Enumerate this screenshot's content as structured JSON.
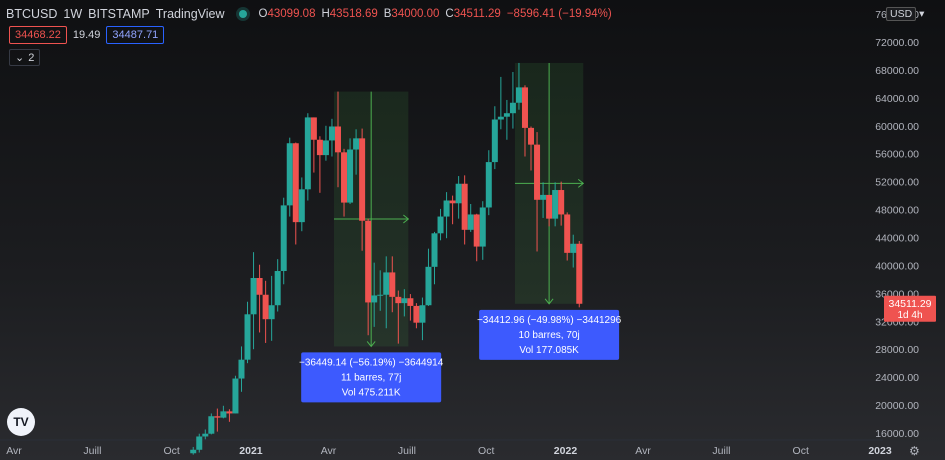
{
  "header": {
    "symbol": "BTCUSD",
    "interval": "1W",
    "exchange": "BITSTAMP",
    "source": "TradingView",
    "ohlc": {
      "o_label": "O",
      "o": "43099.08",
      "h_label": "H",
      "h": "43518.69",
      "l_label": "B",
      "l": "34000.00",
      "c_label": "C",
      "c": "34511.29",
      "change": "−8596.41 (−19.94%)"
    }
  },
  "quote": {
    "bid": "34468.22",
    "spread": "19.49",
    "ask": "34487.71"
  },
  "indicators_toggle": "2",
  "currency": "USD",
  "price_label": {
    "value": "34511.29",
    "countdown": "1d 4h",
    "color": "#ef5350"
  },
  "colors": {
    "up": "#26a69a",
    "down": "#ef5350",
    "accent": "#2962ff",
    "measure_box": "#3d5afe"
  },
  "chart_data": {
    "type": "candlestick",
    "title": "BTCUSD 1W BITSTAMP",
    "y_ticks": [
      16000,
      20000,
      24000,
      28000,
      32000,
      36000,
      40000,
      44000,
      48000,
      52000,
      56000,
      60000,
      64000,
      68000,
      72000,
      76000
    ],
    "x_labels": [
      "Avr",
      "Juill",
      "Oct",
      "2021",
      "Avr",
      "Juill",
      "Oct",
      "2022",
      "Avr",
      "Juill",
      "Oct",
      "2023"
    ],
    "x_label_dates": [
      "2020-04-01",
      "2020-07-01",
      "2020-10-01",
      "2021-01-01",
      "2021-04-01",
      "2021-07-01",
      "2021-10-01",
      "2022-01-01",
      "2022-04-01",
      "2022-07-01",
      "2022-10-01",
      "2023-01-01"
    ],
    "candles": [
      {
        "t": "2020-10-26",
        "o": 13100,
        "h": 14000,
        "l": 12900,
        "c": 13600
      },
      {
        "t": "2020-11-02",
        "o": 13600,
        "h": 15900,
        "l": 13200,
        "c": 15500
      },
      {
        "t": "2020-11-09",
        "o": 15500,
        "h": 16500,
        "l": 15100,
        "c": 15900
      },
      {
        "t": "2020-11-16",
        "o": 15900,
        "h": 18800,
        "l": 15800,
        "c": 18400
      },
      {
        "t": "2020-11-23",
        "o": 18400,
        "h": 19500,
        "l": 16200,
        "c": 18200
      },
      {
        "t": "2020-11-30",
        "o": 18200,
        "h": 19900,
        "l": 18100,
        "c": 19100
      },
      {
        "t": "2020-12-07",
        "o": 19100,
        "h": 19400,
        "l": 17600,
        "c": 18800
      },
      {
        "t": "2020-12-14",
        "o": 18800,
        "h": 24200,
        "l": 18800,
        "c": 23800
      },
      {
        "t": "2020-12-21",
        "o": 23800,
        "h": 28400,
        "l": 21900,
        "c": 26500
      },
      {
        "t": "2020-12-28",
        "o": 26500,
        "h": 34800,
        "l": 26000,
        "c": 33000
      },
      {
        "t": "2021-01-04",
        "o": 33000,
        "h": 41900,
        "l": 28000,
        "c": 38200
      },
      {
        "t": "2021-01-11",
        "o": 38200,
        "h": 40100,
        "l": 30400,
        "c": 35800
      },
      {
        "t": "2021-01-18",
        "o": 35800,
        "h": 37800,
        "l": 28900,
        "c": 32300
      },
      {
        "t": "2021-01-25",
        "o": 32300,
        "h": 38500,
        "l": 29200,
        "c": 34300
      },
      {
        "t": "2021-02-01",
        "o": 34300,
        "h": 40900,
        "l": 33400,
        "c": 39200
      },
      {
        "t": "2021-02-08",
        "o": 39200,
        "h": 49700,
        "l": 37300,
        "c": 48600
      },
      {
        "t": "2021-02-15",
        "o": 48600,
        "h": 58300,
        "l": 47000,
        "c": 57500
      },
      {
        "t": "2021-02-22",
        "o": 57500,
        "h": 57600,
        "l": 43000,
        "c": 46200
      },
      {
        "t": "2021-03-01",
        "o": 46200,
        "h": 52600,
        "l": 44900,
        "c": 50900
      },
      {
        "t": "2021-03-08",
        "o": 50900,
        "h": 61800,
        "l": 49300,
        "c": 61200
      },
      {
        "t": "2021-03-15",
        "o": 61200,
        "h": 61200,
        "l": 53300,
        "c": 58000
      },
      {
        "t": "2021-03-22",
        "o": 58000,
        "h": 58500,
        "l": 50400,
        "c": 55800
      },
      {
        "t": "2021-03-29",
        "o": 55800,
        "h": 60000,
        "l": 55000,
        "c": 57900
      },
      {
        "t": "2021-04-05",
        "o": 57900,
        "h": 61000,
        "l": 55600,
        "c": 59900
      },
      {
        "t": "2021-04-12",
        "o": 59900,
        "h": 64900,
        "l": 51200,
        "c": 56200
      },
      {
        "t": "2021-04-19",
        "o": 56200,
        "h": 56700,
        "l": 47000,
        "c": 49000
      },
      {
        "t": "2021-04-26",
        "o": 49000,
        "h": 58200,
        "l": 48800,
        "c": 56600
      },
      {
        "t": "2021-05-03",
        "o": 56600,
        "h": 59500,
        "l": 53000,
        "c": 58200
      },
      {
        "t": "2021-05-10",
        "o": 58200,
        "h": 59600,
        "l": 42100,
        "c": 46400
      },
      {
        "t": "2021-05-17",
        "o": 46400,
        "h": 46700,
        "l": 30000,
        "c": 34700
      },
      {
        "t": "2021-05-24",
        "o": 34700,
        "h": 40400,
        "l": 31200,
        "c": 35700
      },
      {
        "t": "2021-05-31",
        "o": 35700,
        "h": 39300,
        "l": 33500,
        "c": 35800
      },
      {
        "t": "2021-06-07",
        "o": 35800,
        "h": 41300,
        "l": 31000,
        "c": 39000
      },
      {
        "t": "2021-06-14",
        "o": 39000,
        "h": 41300,
        "l": 33300,
        "c": 35500
      },
      {
        "t": "2021-06-21",
        "o": 35500,
        "h": 36400,
        "l": 28800,
        "c": 34600
      },
      {
        "t": "2021-06-28",
        "o": 34600,
        "h": 36600,
        "l": 32700,
        "c": 35300
      },
      {
        "t": "2021-07-05",
        "o": 35300,
        "h": 35900,
        "l": 32100,
        "c": 34200
      },
      {
        "t": "2021-07-12",
        "o": 34200,
        "h": 34600,
        "l": 31000,
        "c": 31800
      },
      {
        "t": "2021-07-19",
        "o": 31800,
        "h": 35400,
        "l": 29300,
        "c": 34300
      },
      {
        "t": "2021-07-26",
        "o": 34300,
        "h": 42400,
        "l": 34200,
        "c": 39800
      },
      {
        "t": "2021-08-02",
        "o": 39800,
        "h": 44800,
        "l": 37300,
        "c": 44600
      },
      {
        "t": "2021-08-09",
        "o": 44600,
        "h": 48100,
        "l": 43600,
        "c": 47000
      },
      {
        "t": "2021-08-16",
        "o": 47000,
        "h": 50500,
        "l": 43900,
        "c": 49300
      },
      {
        "t": "2021-08-23",
        "o": 49300,
        "h": 50000,
        "l": 45900,
        "c": 48900
      },
      {
        "t": "2021-08-30",
        "o": 48900,
        "h": 52800,
        "l": 46700,
        "c": 51700
      },
      {
        "t": "2021-09-06",
        "o": 51700,
        "h": 52900,
        "l": 43000,
        "c": 45100
      },
      {
        "t": "2021-09-13",
        "o": 45100,
        "h": 48800,
        "l": 44800,
        "c": 47300
      },
      {
        "t": "2021-09-20",
        "o": 47300,
        "h": 47400,
        "l": 40600,
        "c": 42700
      },
      {
        "t": "2021-09-27",
        "o": 42700,
        "h": 49200,
        "l": 40800,
        "c": 48300
      },
      {
        "t": "2021-10-04",
        "o": 48300,
        "h": 56500,
        "l": 47200,
        "c": 54800
      },
      {
        "t": "2021-10-11",
        "o": 54800,
        "h": 62800,
        "l": 53800,
        "c": 60900
      },
      {
        "t": "2021-10-18",
        "o": 60900,
        "h": 67000,
        "l": 59500,
        "c": 61300
      },
      {
        "t": "2021-10-25",
        "o": 61300,
        "h": 63700,
        "l": 58000,
        "c": 61800
      },
      {
        "t": "2021-11-01",
        "o": 61800,
        "h": 67700,
        "l": 59600,
        "c": 63300
      },
      {
        "t": "2021-11-08",
        "o": 63300,
        "h": 69000,
        "l": 62300,
        "c": 65500
      },
      {
        "t": "2021-11-15",
        "o": 65500,
        "h": 65800,
        "l": 55600,
        "c": 59700
      },
      {
        "t": "2021-11-22",
        "o": 59700,
        "h": 59900,
        "l": 53600,
        "c": 57300
      },
      {
        "t": "2021-11-29",
        "o": 57300,
        "h": 59100,
        "l": 42000,
        "c": 49400
      },
      {
        "t": "2021-12-06",
        "o": 49400,
        "h": 51900,
        "l": 46800,
        "c": 50100
      },
      {
        "t": "2021-12-13",
        "o": 50100,
        "h": 50100,
        "l": 45600,
        "c": 46700
      },
      {
        "t": "2021-12-20",
        "o": 46700,
        "h": 51900,
        "l": 45600,
        "c": 50800
      },
      {
        "t": "2021-12-27",
        "o": 50800,
        "h": 52000,
        "l": 45700,
        "c": 47300
      },
      {
        "t": "2022-01-03",
        "o": 47300,
        "h": 47600,
        "l": 40700,
        "c": 41800
      },
      {
        "t": "2022-01-10",
        "o": 41800,
        "h": 44400,
        "l": 39700,
        "c": 43100
      },
      {
        "t": "2022-01-17",
        "o": 43100,
        "h": 43500,
        "l": 34000,
        "c": 34511
      }
    ],
    "measures": [
      {
        "start": "2021-04-12",
        "end": "2021-06-28",
        "price_from": 64900,
        "price_to": 28400,
        "text": "−36449.14 (−56.19%) −3644914",
        "bars": "11 barres, 77j",
        "vol": "Vol 475.211K"
      },
      {
        "start": "2021-11-08",
        "end": "2022-01-17",
        "price_from": 69000,
        "price_to": 34500,
        "text": "−34412.96 (−49.98%) −3441296",
        "bars": "10 barres, 70j",
        "vol": "Vol 177.085K"
      }
    ],
    "ylim": [
      14000,
      78000
    ],
    "grid": false
  }
}
